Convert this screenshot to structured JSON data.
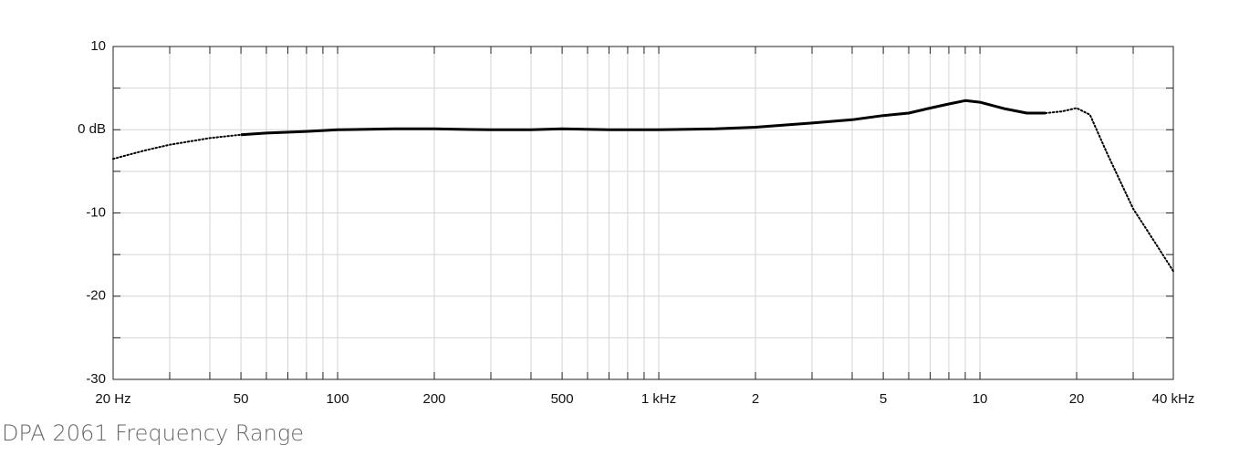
{
  "chart_data": {
    "type": "line",
    "title": "DPA 2061 Frequency Range",
    "x": [
      20,
      25,
      30,
      40,
      50,
      60,
      80,
      100,
      150,
      200,
      300,
      400,
      500,
      700,
      1000,
      1500,
      2000,
      3000,
      4000,
      5000,
      6000,
      7000,
      8000,
      9000,
      10000,
      12000,
      14000,
      16000,
      18000,
      20000,
      22000,
      25000,
      30000,
      35000,
      40000
    ],
    "series": [
      {
        "color": "#000000",
        "style": "solid",
        "values": [
          null,
          null,
          null,
          null,
          -0.6,
          -0.4,
          -0.2,
          0,
          0.1,
          0.1,
          0,
          0,
          0.1,
          0,
          0,
          0.1,
          0.3,
          0.8,
          1.2,
          1.7,
          2.0,
          2.6,
          3.1,
          3.5,
          3.3,
          2.5,
          2.0,
          2.0,
          null,
          null,
          null,
          null,
          null,
          null,
          null
        ]
      },
      {
        "color": "#000000",
        "style": "dotted",
        "values": [
          -3.5,
          -2.5,
          -1.8,
          -1.0,
          -0.6,
          null,
          null,
          null,
          null,
          null,
          null,
          null,
          null,
          null,
          null,
          null,
          null,
          null,
          null,
          null,
          null,
          null,
          null,
          null,
          null,
          null,
          null,
          2.0,
          2.2,
          2.6,
          1.8,
          -3,
          -9.5,
          -13.5,
          -17
        ]
      }
    ],
    "xlog": true,
    "xlim": [
      20,
      40000
    ],
    "xticks": [
      {
        "value": 20,
        "label": "20 Hz"
      },
      50,
      100,
      200,
      500,
      {
        "value": 1000,
        "label": "1 kHz"
      },
      {
        "value": 2000,
        "label": "2"
      },
      {
        "value": 5000,
        "label": "5"
      },
      {
        "value": 10000,
        "label": "10"
      },
      {
        "value": 20000,
        "label": "20"
      },
      {
        "value": 40000,
        "label": "40 kHz"
      }
    ],
    "xminor": [
      30,
      40,
      60,
      70,
      80,
      90,
      300,
      400,
      600,
      700,
      800,
      900,
      3000,
      4000,
      6000,
      7000,
      8000,
      9000,
      30000
    ],
    "ylim": [
      -30,
      10
    ],
    "yticks": [
      -30,
      -20,
      -10,
      {
        "value": 0,
        "label": "0 dB"
      },
      10
    ],
    "yminor": [
      -25,
      -15,
      -5,
      5
    ],
    "grid": true
  }
}
